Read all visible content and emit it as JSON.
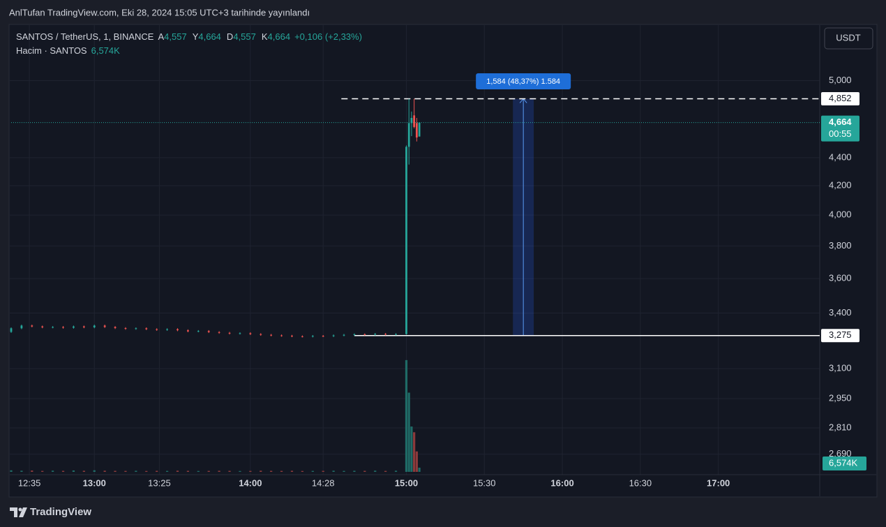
{
  "header": {
    "publisher": "AnlTufan TradingView.com, Eki 28, 2024 15:05 UTC+3 tarihinde yayınlandı"
  },
  "currency_button": "USDT",
  "chart_data": {
    "type": "candlestick",
    "legend": {
      "symbol": "SANTOS / TetherUS, 1, BINANCE",
      "ohlc": [
        {
          "key": "A",
          "value": "4,557"
        },
        {
          "key": "Y",
          "value": "4,664"
        },
        {
          "key": "D",
          "value": "4,557"
        },
        {
          "key": "K",
          "value": "4,664"
        }
      ],
      "change": "+0,106 (+2,33%)",
      "volume_name": "Hacim · SANTOS",
      "volume_value": "6,574K"
    },
    "x": [
      "12:28",
      "12:32",
      "12:36",
      "12:40",
      "12:44",
      "12:48",
      "12:52",
      "12:56",
      "13:00",
      "13:04",
      "13:08",
      "13:12",
      "13:16",
      "13:20",
      "13:24",
      "13:28",
      "13:32",
      "13:36",
      "13:40",
      "13:44",
      "13:48",
      "13:52",
      "13:56",
      "14:00",
      "14:04",
      "14:08",
      "14:12",
      "14:16",
      "14:20",
      "14:24",
      "14:28",
      "14:32",
      "14:36",
      "14:40",
      "14:44",
      "14:48",
      "14:52",
      "14:56",
      "15:00",
      "15:01",
      "15:02",
      "15:03",
      "15:04",
      "15:05"
    ],
    "open": [
      3.295,
      3.315,
      3.33,
      3.325,
      3.32,
      3.322,
      3.318,
      3.325,
      3.32,
      3.33,
      3.322,
      3.316,
      3.312,
      3.315,
      3.31,
      3.306,
      3.31,
      3.304,
      3.298,
      3.3,
      3.294,
      3.29,
      3.286,
      3.288,
      3.283,
      3.279,
      3.276,
      3.274,
      3.271,
      3.27,
      3.273,
      3.272,
      3.276,
      3.279,
      3.282,
      3.28,
      3.284,
      3.281,
      3.283,
      4.48,
      4.66,
      4.72,
      4.66,
      4.557
    ],
    "high": [
      3.32,
      3.335,
      3.335,
      3.33,
      3.327,
      3.327,
      3.33,
      3.33,
      3.335,
      3.335,
      3.327,
      3.321,
      3.32,
      3.32,
      3.315,
      3.315,
      3.315,
      3.309,
      3.305,
      3.305,
      3.299,
      3.295,
      3.293,
      3.293,
      3.288,
      3.284,
      3.281,
      3.279,
      3.276,
      3.278,
      3.278,
      3.281,
      3.284,
      3.287,
      3.287,
      3.289,
      3.289,
      3.288,
      4.49,
      4.852,
      4.75,
      4.852,
      4.7,
      4.664
    ],
    "low": [
      3.29,
      3.31,
      3.32,
      3.315,
      3.315,
      3.313,
      3.313,
      3.315,
      3.315,
      3.317,
      3.311,
      3.307,
      3.307,
      3.305,
      3.301,
      3.301,
      3.299,
      3.293,
      3.293,
      3.289,
      3.285,
      3.281,
      3.281,
      3.278,
      3.274,
      3.271,
      3.269,
      3.266,
      3.265,
      3.265,
      3.267,
      3.267,
      3.271,
      3.274,
      3.275,
      3.275,
      3.276,
      3.276,
      3.28,
      4.35,
      4.56,
      4.62,
      4.52,
      4.557
    ],
    "close": [
      3.315,
      3.33,
      3.325,
      3.32,
      3.322,
      3.318,
      3.325,
      3.32,
      3.33,
      3.322,
      3.316,
      3.312,
      3.315,
      3.31,
      3.306,
      3.31,
      3.304,
      3.298,
      3.3,
      3.294,
      3.29,
      3.286,
      3.288,
      3.283,
      3.279,
      3.276,
      3.274,
      3.271,
      3.27,
      3.273,
      3.272,
      3.276,
      3.279,
      3.282,
      3.28,
      3.284,
      3.281,
      3.283,
      4.48,
      4.66,
      4.7,
      4.63,
      4.55,
      4.664
    ],
    "volume": [
      2400000,
      1800000,
      2100000,
      1500000,
      1900000,
      1600000,
      2200000,
      1700000,
      2500000,
      1800000,
      1600000,
      1500000,
      1700000,
      1400000,
      1600000,
      1500000,
      1800000,
      1600000,
      1400000,
      1500000,
      1700000,
      1600000,
      1400000,
      1500000,
      1800000,
      1600000,
      1500000,
      1700000,
      1400000,
      1500000,
      1600000,
      1800000,
      1500000,
      1700000,
      1600000,
      1900000,
      1500000,
      1800000,
      175000000,
      124000000,
      71000000,
      62000000,
      32000000,
      6574000
    ],
    "volume_lim": [
      0,
      200000000
    ],
    "log_scale": true,
    "grid": true,
    "ylim": [
      2.6,
      5.47
    ],
    "yticks": [
      {
        "value": 5,
        "label": "5,000"
      },
      {
        "value": 4.4,
        "label": "4,400"
      },
      {
        "value": 4.2,
        "label": "4,200"
      },
      {
        "value": 4,
        "label": "4,000"
      },
      {
        "value": 3.8,
        "label": "3,800"
      },
      {
        "value": 3.6,
        "label": "3,600"
      },
      {
        "value": 3.4,
        "label": "3,400"
      },
      {
        "value": 3.1,
        "label": "3,100"
      },
      {
        "value": 2.95,
        "label": "2,950"
      },
      {
        "value": 2.81,
        "label": "2,810"
      },
      {
        "value": 2.69,
        "label": "2,690"
      }
    ],
    "xlim": [
      "12:28",
      "17:39"
    ],
    "xticks": [
      "12:35",
      "13:00",
      "13:25",
      "14:00",
      "14:28",
      "15:00",
      "15:30",
      "16:00",
      "16:30",
      "17:00"
    ],
    "colors": {
      "up": "#26a69a",
      "down": "#ef5350",
      "volume_up": "#1f6b66",
      "volume_down": "#8c3a3b",
      "measure": "#2962ff"
    },
    "last_price": {
      "value": 4.664,
      "label": "4,664"
    },
    "countdown": "00:55",
    "annotations": {
      "measure_label": "1,584 (48,37%) 1.584",
      "measure_start": "15:41",
      "measure_end": "15:49",
      "upper_level": {
        "value": 4.852,
        "label": "4,852",
        "start": "14:35"
      },
      "lower_level": {
        "value": 3.275,
        "label": "3,275",
        "start": "14:40"
      }
    }
  },
  "footer": {
    "brand": "TradingView"
  }
}
